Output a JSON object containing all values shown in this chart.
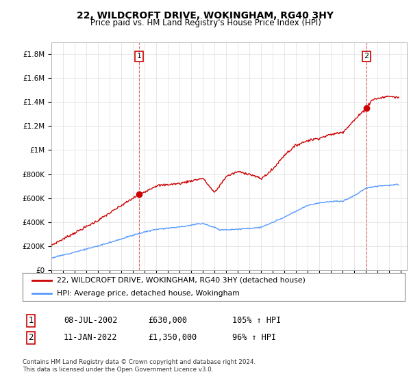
{
  "title": "22, WILDCROFT DRIVE, WOKINGHAM, RG40 3HY",
  "subtitle": "Price paid vs. HM Land Registry's House Price Index (HPI)",
  "ylim": [
    0,
    1900000
  ],
  "yticks": [
    0,
    200000,
    400000,
    600000,
    800000,
    1000000,
    1200000,
    1400000,
    1600000,
    1800000
  ],
  "ytick_labels": [
    "£0",
    "£200K",
    "£400K",
    "£600K",
    "£800K",
    "£1M",
    "£1.2M",
    "£1.4M",
    "£1.6M",
    "£1.8M"
  ],
  "xlim_start": 1995.0,
  "xlim_end": 2025.5,
  "sale1_date": 2002.52,
  "sale1_price": 630000,
  "sale2_date": 2022.03,
  "sale2_price": 1350000,
  "sale1_label": "1",
  "sale2_label": "2",
  "vline1_x": 2002.52,
  "vline2_x": 2022.03,
  "legend_line1": "22, WILDCROFT DRIVE, WOKINGHAM, RG40 3HY (detached house)",
  "legend_line2": "HPI: Average price, detached house, Wokingham",
  "table_row1": [
    "1",
    "08-JUL-2002",
    "£630,000",
    "105% ↑ HPI"
  ],
  "table_row2": [
    "2",
    "11-JAN-2022",
    "£1,350,000",
    "96% ↑ HPI"
  ],
  "footer": "Contains HM Land Registry data © Crown copyright and database right 2024.\nThis data is licensed under the Open Government Licence v3.0.",
  "red_color": "#cc0000",
  "blue_color": "#5599ff",
  "background_color": "#ffffff",
  "grid_color": "#dddddd"
}
